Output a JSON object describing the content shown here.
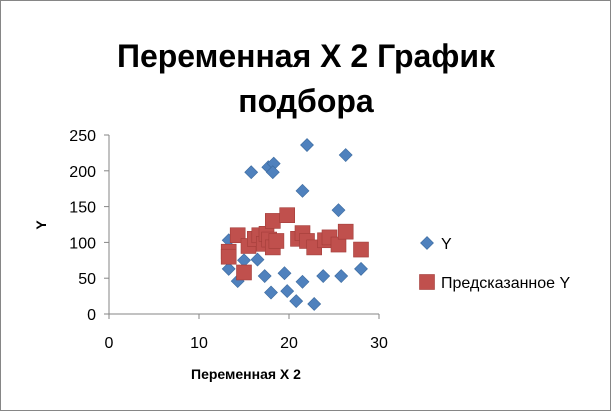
{
  "chart_data": {
    "type": "scatter",
    "title_lines": [
      "Переменная X 2 График",
      "подбора"
    ],
    "xlabel": "Переменная X 2",
    "ylabel": "Y",
    "xlim": [
      0,
      30
    ],
    "ylim": [
      0,
      250
    ],
    "x_ticks": [
      "0",
      "10",
      "20",
      "30"
    ],
    "y_ticks": [
      "0",
      "50",
      "100",
      "150",
      "200",
      "250"
    ],
    "grid": false,
    "legend_position": "right",
    "series": [
      {
        "name": "Y",
        "marker": "diamond",
        "color": "#4F81BD",
        "points": [
          [
            13.3,
            103
          ],
          [
            13.3,
            63
          ],
          [
            14.3,
            46
          ],
          [
            15,
            75
          ],
          [
            15.8,
            198
          ],
          [
            16.5,
            76
          ],
          [
            17.3,
            53
          ],
          [
            17.7,
            205
          ],
          [
            18,
            30
          ],
          [
            18.3,
            210
          ],
          [
            18.2,
            198
          ],
          [
            19.5,
            57
          ],
          [
            19.8,
            32
          ],
          [
            20.8,
            18
          ],
          [
            21.5,
            172
          ],
          [
            21.5,
            45
          ],
          [
            22,
            236
          ],
          [
            22.8,
            14
          ],
          [
            23.8,
            53
          ],
          [
            25.5,
            145
          ],
          [
            25.8,
            53
          ],
          [
            26.3,
            222
          ],
          [
            28,
            63
          ]
        ]
      },
      {
        "name": "Предсказанное Y",
        "marker": "square",
        "color": "#C0504D",
        "points": [
          [
            13.3,
            87
          ],
          [
            13.3,
            80
          ],
          [
            14.3,
            110
          ],
          [
            15,
            58
          ],
          [
            15.5,
            95
          ],
          [
            16.2,
            105
          ],
          [
            16.7,
            110
          ],
          [
            17.2,
            98
          ],
          [
            17.5,
            112
          ],
          [
            17.8,
            104
          ],
          [
            18.2,
            130
          ],
          [
            18.2,
            93
          ],
          [
            18.6,
            102
          ],
          [
            19.8,
            138
          ],
          [
            21,
            105
          ],
          [
            21.5,
            113
          ],
          [
            22,
            102
          ],
          [
            22.8,
            93
          ],
          [
            24,
            103
          ],
          [
            24.5,
            107
          ],
          [
            25.5,
            97
          ],
          [
            26.3,
            115
          ],
          [
            28,
            90
          ]
        ]
      }
    ]
  }
}
